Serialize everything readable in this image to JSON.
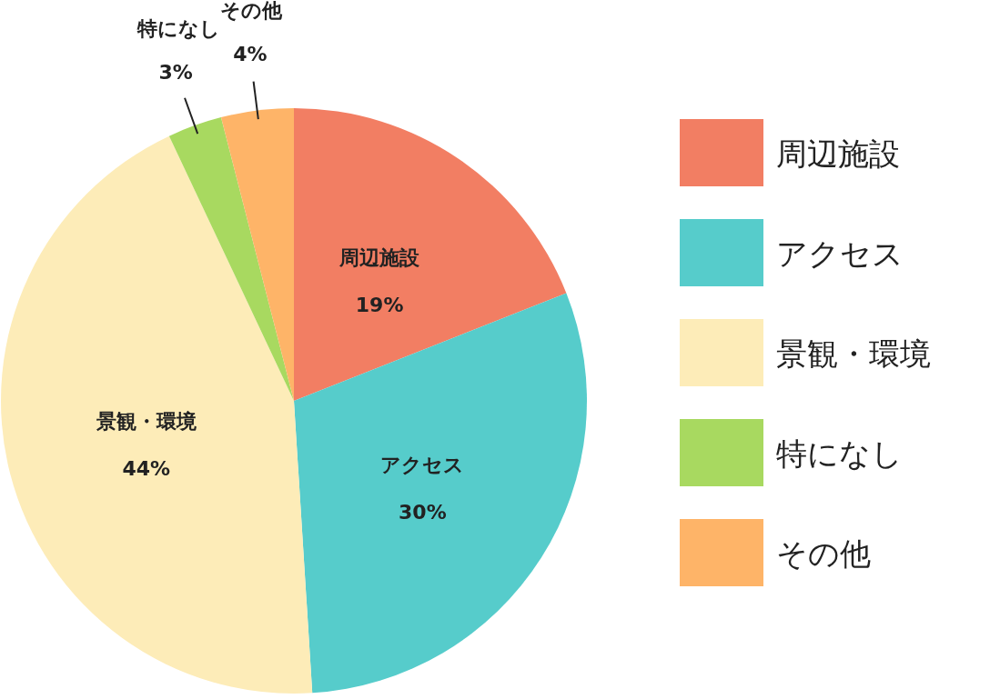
{
  "chart_data": {
    "type": "pie",
    "categories": [
      "周辺施設",
      "アクセス",
      "景観・環境",
      "特になし",
      "その他"
    ],
    "values": [
      19,
      30,
      44,
      3,
      4
    ],
    "value_labels": [
      "19%",
      "30%",
      "44%",
      "3%",
      "4%"
    ],
    "colors": [
      "#f27e63",
      "#56cccb",
      "#fdecb8",
      "#a8d960",
      "#feb468"
    ],
    "legend": "right"
  }
}
